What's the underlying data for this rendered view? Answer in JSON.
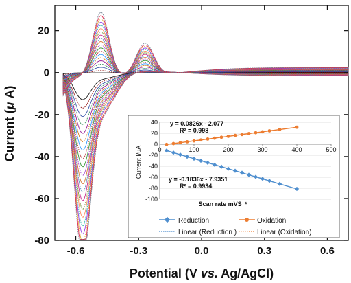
{
  "chart_data": [
    {
      "type": "line",
      "xlabel_parts": [
        "Potential (V ",
        "vs.",
        " Ag/AgCl)"
      ],
      "ylabel_parts": [
        "Current (",
        "μ",
        " A)"
      ],
      "xlim": [
        -0.7,
        0.7
      ],
      "ylim": [
        -80,
        32
      ],
      "x_ticks": [
        "-0.6",
        "-0.3",
        "0.0",
        "0.3",
        "0.6"
      ],
      "x_tick_values": [
        -0.6,
        -0.3,
        0.0,
        0.3,
        0.6
      ],
      "y_ticks": [
        "20",
        "0",
        "-20",
        "-40",
        "-60",
        "-80"
      ],
      "y_tick_values": [
        20,
        0,
        -20,
        -40,
        -60,
        -80
      ],
      "grid": false,
      "curve_count": 20,
      "scan_rates": [
        20,
        40,
        60,
        80,
        100,
        120,
        140,
        160,
        180,
        200,
        220,
        240,
        260,
        280,
        300,
        320,
        340,
        360,
        380,
        400
      ],
      "reduction_peak_potential": -0.57,
      "oxidation_peak_potential_1": -0.48,
      "oxidation_peak_potential_2": -0.27,
      "reduction_peak_currents": [
        -11.6,
        -15.3,
        -19.0,
        -22.6,
        -26.3,
        -30.0,
        -33.6,
        -37.3,
        -40.9,
        -44.6,
        -48.3,
        -51.9,
        -55.6,
        -59.3,
        -62.9,
        -66.6,
        -70.2,
        -73.9,
        -77.6,
        -81.2
      ],
      "oxidation_peak_currents": [
        -0.4,
        1.2,
        2.9,
        4.5,
        6.2,
        7.8,
        9.5,
        11.1,
        12.8,
        14.4,
        16.1,
        17.7,
        19.4,
        21.0,
        22.7,
        24.4,
        26.0,
        27.7,
        29.3,
        31.0
      ],
      "curve_colors": [
        "#000000",
        "#8b0000",
        "#1f3fa0",
        "#2e8b57",
        "#8b008b",
        "#cc6600",
        "#1e90ff",
        "#b22222",
        "#228b22",
        "#9932cc",
        "#d2691e",
        "#4682b4",
        "#c71585",
        "#6b8e23",
        "#ff7f50",
        "#20b2aa",
        "#8a2be2",
        "#daa520",
        "#dc143c",
        "#708090"
      ]
    },
    {
      "type": "scatter",
      "xlabel": "Scan rate mVS⁻¹",
      "ylabel": "Current I/uA",
      "xlim": [
        0,
        500
      ],
      "ylim": [
        -100,
        40
      ],
      "x_ticks": [
        "0",
        "100",
        "200",
        "300",
        "400",
        "500"
      ],
      "x_tick_values": [
        0,
        100,
        200,
        300,
        400,
        500
      ],
      "y_ticks": [
        "40",
        "20",
        "0",
        "-20",
        "-40",
        "-60",
        "-80",
        "-100"
      ],
      "y_tick_values": [
        40,
        20,
        0,
        -20,
        -40,
        -60,
        -80,
        -100
      ],
      "grid": true,
      "x": [
        20,
        40,
        60,
        80,
        100,
        120,
        140,
        160,
        180,
        200,
        220,
        240,
        260,
        280,
        300,
        320,
        350,
        400
      ],
      "series": [
        {
          "name": "Oxidation",
          "color": "#ed7d31",
          "marker": "circle",
          "values": [
            -0.4,
            1.2,
            2.9,
            4.5,
            6.2,
            7.8,
            9.5,
            11.1,
            12.8,
            14.4,
            16.1,
            17.7,
            19.4,
            21.0,
            22.7,
            24.4,
            26.8,
            31.0
          ]
        },
        {
          "name": "Reduction",
          "color": "#4f8fcf",
          "marker": "diamond",
          "values": [
            -11.6,
            -15.3,
            -19.0,
            -22.6,
            -26.3,
            -30.0,
            -33.6,
            -37.3,
            -40.9,
            -44.6,
            -48.3,
            -51.9,
            -55.6,
            -59.3,
            -62.9,
            -66.6,
            -72.2,
            -81.2
          ]
        }
      ],
      "trendlines": [
        {
          "name": "Linear (Reduction )",
          "color": "#4f8fcf",
          "style": "dotted",
          "slope": -0.1836,
          "intercept": -7.9351
        },
        {
          "name": "Linear (Oxidation)",
          "color": "#ed7d31",
          "style": "dotted",
          "slope": 0.0826,
          "intercept": -2.077
        }
      ],
      "annotations": {
        "ox_eq": "y = 0.0826x - 2.077",
        "ox_r2": "R² = 0.998",
        "red_eq": "y = -0.1836x - 7.9351",
        "red_r2": "R² = 0.9934"
      },
      "legend_placement": "bottom"
    }
  ]
}
